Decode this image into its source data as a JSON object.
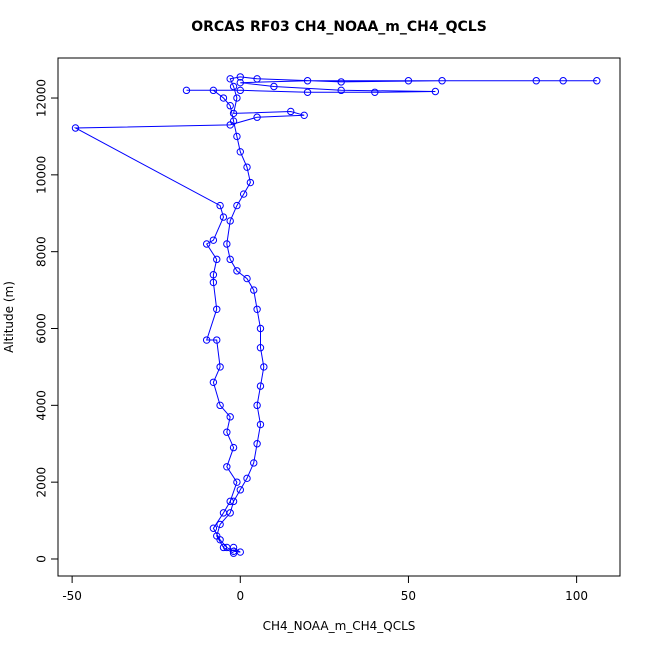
{
  "chart_data": {
    "type": "line",
    "title": "ORCAS RF03 CH4_NOAA_m_CH4_QCLS",
    "x_label": "CH4_NOAA_m_CH4_QCLS",
    "y_label": "Altitude (m)",
    "color": "#0000ff",
    "markers": true,
    "xlim": [
      -54.2,
      112.9
    ],
    "ylim": [
      -443,
      13042
    ],
    "xticks": [
      -50,
      0,
      50,
      100
    ],
    "yticks": [
      0,
      2000,
      4000,
      6000,
      8000,
      10000,
      12000
    ],
    "x": [
      -2,
      -5,
      -7,
      -6,
      -3,
      -2,
      0,
      2,
      4,
      5,
      6,
      5,
      6,
      7,
      6,
      6,
      5,
      4,
      2,
      -1,
      -3,
      -4,
      -3,
      -1,
      1,
      3,
      2,
      0,
      -1,
      -2,
      -3,
      -5,
      -8,
      -16,
      0,
      20,
      40,
      58,
      30,
      10,
      0,
      20,
      50,
      88,
      96,
      106,
      60,
      30,
      5,
      0,
      -3,
      -2,
      -1,
      -2,
      15,
      19,
      5,
      -3,
      -49,
      -6,
      -5,
      -8,
      -10,
      -7,
      -8,
      -8,
      -7,
      -10,
      -7,
      -6,
      -8,
      -6,
      -3,
      -4,
      -2,
      -4,
      -1,
      -3,
      -5,
      -8,
      -6,
      -4,
      -2,
      0,
      -2
    ],
    "y": [
      150,
      300,
      600,
      900,
      1200,
      1500,
      1800,
      2100,
      2500,
      3000,
      3500,
      4000,
      4500,
      5000,
      5500,
      6000,
      6500,
      7000,
      7300,
      7500,
      7800,
      8200,
      8800,
      9200,
      9500,
      9800,
      10200,
      10600,
      11000,
      11400,
      11800,
      12000,
      12200,
      12200,
      12200,
      12150,
      12150,
      12170,
      12200,
      12300,
      12400,
      12450,
      12450,
      12450,
      12450,
      12450,
      12450,
      12420,
      12500,
      12550,
      12500,
      12300,
      12000,
      11600,
      11650,
      11550,
      11500,
      11300,
      11220,
      9200,
      8900,
      8300,
      8200,
      7800,
      7400,
      7200,
      6500,
      5700,
      5700,
      5000,
      4600,
      4000,
      3700,
      3300,
      2900,
      2400,
      2000,
      1500,
      1200,
      800,
      500,
      300,
      200,
      180,
      300
    ]
  }
}
